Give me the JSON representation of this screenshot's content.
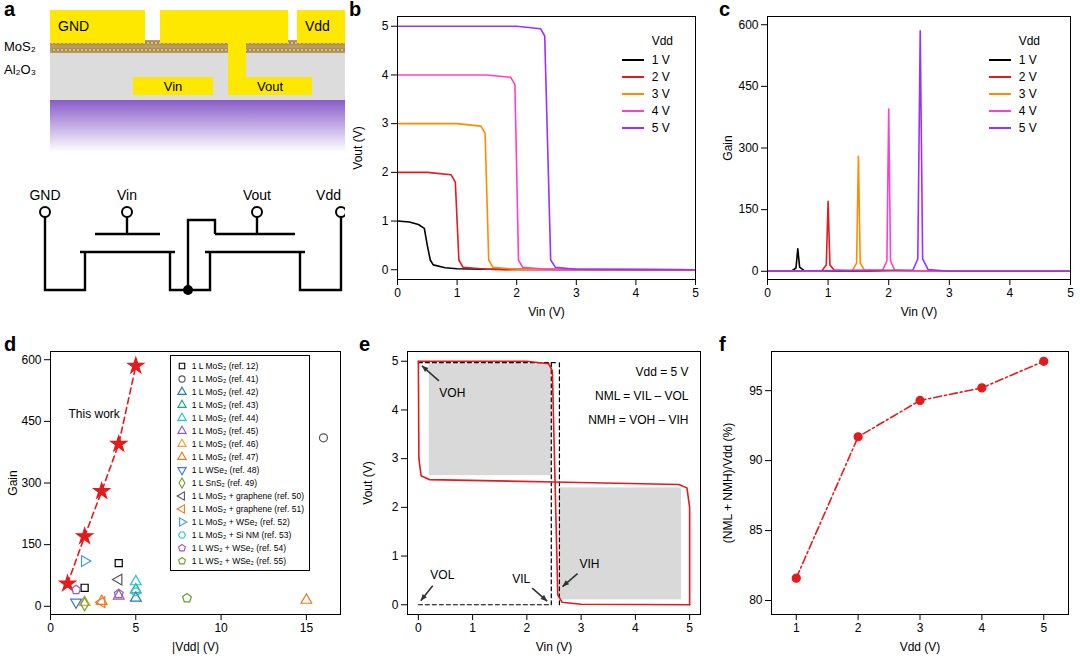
{
  "diagram": {
    "title": "a",
    "cross_section": {
      "contacts": [
        "GND",
        "Vdd"
      ],
      "layers": [
        "MoS₂",
        "Al₂O₃"
      ],
      "gates": [
        "Vin",
        "Vout"
      ]
    },
    "circuit": {
      "terminals": [
        "GND",
        "Vin",
        "Vout",
        "Vdd"
      ]
    }
  },
  "chart_data": [
    {
      "type": "line",
      "title": "b",
      "x_label": "Vin (V)",
      "y_label": "Vout (V)",
      "xlim": [
        0,
        5
      ],
      "xticks": [
        0,
        1,
        2,
        3,
        4,
        5
      ],
      "ylim": [
        -0.2,
        5.2
      ],
      "yticks": [
        0,
        1,
        2,
        3,
        4,
        5
      ],
      "legend": "top-right",
      "legend_title": "Vdd",
      "series": [
        {
          "name": "1 V",
          "color": "#000000",
          "x": [
            0,
            0.2,
            0.35,
            0.45,
            0.5,
            0.55,
            0.6,
            0.8,
            1.0,
            1.5,
            5
          ],
          "values": [
            1.0,
            0.98,
            0.93,
            0.85,
            0.5,
            0.2,
            0.1,
            0.04,
            0.02,
            0.01,
            0
          ]
        },
        {
          "name": "2 V",
          "color": "#e41a1c",
          "x": [
            0,
            0.5,
            0.9,
            0.97,
            1.0,
            1.03,
            1.1,
            1.5,
            2,
            5
          ],
          "values": [
            2,
            2,
            1.95,
            1.8,
            1.0,
            0.2,
            0.05,
            0.01,
            0,
            0
          ]
        },
        {
          "name": "3 V",
          "color": "#ff8c00",
          "x": [
            0,
            1,
            1.4,
            1.47,
            1.5,
            1.53,
            1.6,
            2,
            5
          ],
          "values": [
            3,
            3,
            2.95,
            2.8,
            1.5,
            0.2,
            0.05,
            0.01,
            0
          ]
        },
        {
          "name": "4 V",
          "color": "#ff3fd0",
          "x": [
            0,
            1.5,
            1.9,
            1.97,
            2.0,
            2.03,
            2.1,
            2.5,
            5
          ],
          "values": [
            4,
            4,
            3.95,
            3.8,
            2,
            0.2,
            0.05,
            0.01,
            0
          ]
        },
        {
          "name": "5 V",
          "color": "#9b30ff",
          "x": [
            0,
            2,
            2.4,
            2.47,
            2.52,
            2.57,
            2.65,
            3,
            5
          ],
          "values": [
            5,
            5,
            4.95,
            4.8,
            2.5,
            0.2,
            0.05,
            0.01,
            0
          ]
        }
      ]
    },
    {
      "type": "line",
      "title": "c",
      "x_label": "Vin (V)",
      "y_label": "Gain",
      "xlim": [
        0,
        5
      ],
      "xticks": [
        0,
        1,
        2,
        3,
        4,
        5
      ],
      "ylim": [
        -20,
        620
      ],
      "yticks": [
        0,
        150,
        300,
        450,
        600
      ],
      "legend": "top-right",
      "legend_title": "Vdd",
      "series": [
        {
          "name": "1 V",
          "color": "#000000",
          "x": [
            0,
            0.4,
            0.47,
            0.5,
            0.53,
            0.6,
            1,
            5
          ],
          "values": [
            0,
            1,
            8,
            55,
            10,
            2,
            0,
            0
          ]
        },
        {
          "name": "2 V",
          "color": "#e41a1c",
          "x": [
            0,
            0.9,
            0.97,
            1.0,
            1.03,
            1.1,
            1.5,
            5
          ],
          "values": [
            0,
            2,
            15,
            170,
            15,
            3,
            0,
            0
          ]
        },
        {
          "name": "3 V",
          "color": "#ff8c00",
          "x": [
            0,
            1.4,
            1.47,
            1.5,
            1.53,
            1.6,
            2,
            5
          ],
          "values": [
            0,
            2,
            20,
            280,
            20,
            3,
            0,
            0
          ]
        },
        {
          "name": "4 V",
          "color": "#ff3fd0",
          "x": [
            0,
            1.9,
            1.97,
            2,
            2.03,
            2.1,
            2.5,
            5
          ],
          "values": [
            0,
            3,
            25,
            395,
            25,
            3,
            0,
            0
          ]
        },
        {
          "name": "5 V",
          "color": "#9b30ff",
          "x": [
            0,
            2.4,
            2.48,
            2.52,
            2.56,
            2.65,
            3,
            5
          ],
          "values": [
            0,
            3,
            30,
            585,
            30,
            4,
            0,
            0
          ]
        }
      ]
    },
    {
      "type": "scatter",
      "title": "d",
      "x_label": "|Vdd| (V)",
      "y_label": "Gain",
      "xlim": [
        0,
        17
      ],
      "xticks": [
        0,
        5,
        10,
        15
      ],
      "ylim": [
        -20,
        620
      ],
      "yticks": [
        0,
        150,
        300,
        450,
        600
      ],
      "legend": "top-right",
      "series": [
        {
          "name": "This work",
          "type": "line",
          "color": "#e41a1c",
          "marker": "star",
          "line_style": "dashed",
          "x": [
            1,
            2,
            3,
            4,
            5
          ],
          "values": [
            55,
            170,
            280,
            395,
            585
          ]
        },
        {
          "name": "1 L MoS₂ (ref. 12)",
          "color": "#000000",
          "marker": "square",
          "x": [
            2,
            4
          ],
          "values": [
            45,
            105
          ]
        },
        {
          "name": "1 L MoS₂ (ref. 41)",
          "color": "#555555",
          "marker": "circle",
          "x": [
            16
          ],
          "values": [
            410
          ]
        },
        {
          "name": "1 L MoS₂ (ref. 42)",
          "color": "#1f77b4",
          "marker": "triangle-up",
          "x": [
            5
          ],
          "values": [
            20
          ]
        },
        {
          "name": "1 L MoS₂ (ref. 43)",
          "color": "#17a589",
          "marker": "triangle-up",
          "x": [
            5
          ],
          "values": [
            40
          ]
        },
        {
          "name": "1 L MoS₂ (ref. 44)",
          "color": "#22c4d8",
          "marker": "triangle-up",
          "x": [
            5
          ],
          "values": [
            60
          ]
        },
        {
          "name": "1 L MoS₂ (ref. 45)",
          "color": "#9b59b6",
          "marker": "triangle-up",
          "x": [
            4
          ],
          "values": [
            25
          ]
        },
        {
          "name": "1 L MoS₂ (ref. 46)",
          "color": "#e8a33d",
          "marker": "triangle-up",
          "x": [
            2
          ],
          "values": [
            10
          ]
        },
        {
          "name": "1 L MoS₂ (ref. 47)",
          "color": "#f07820",
          "marker": "triangle-up",
          "x": [
            3,
            15
          ],
          "values": [
            12,
            15
          ]
        },
        {
          "name": "1 L WSe₂ (ref. 48)",
          "color": "#3a7bd5",
          "marker": "triangle-down",
          "x": [
            1.5
          ],
          "values": [
            10
          ]
        },
        {
          "name": "1 L SnS₂ (ref. 49)",
          "color": "#6aa121",
          "marker": "diamond",
          "x": [
            2
          ],
          "values": [
            5
          ]
        },
        {
          "name": "1 L MoS₂ + graphene (ref. 50)",
          "color": "#555555",
          "marker": "triangle-left",
          "x": [
            4
          ],
          "values": [
            65
          ]
        },
        {
          "name": "1 L MoS₂ + graphene (ref. 51)",
          "color": "#f07820",
          "marker": "triangle-left",
          "x": [
            3
          ],
          "values": [
            10
          ]
        },
        {
          "name": "1 L MoS₂ + WSe₂ (ref. 52)",
          "color": "#3a9ad9",
          "marker": "triangle-right",
          "x": [
            2
          ],
          "values": [
            110
          ]
        },
        {
          "name": "1 L MoS₂ + Si NM (ref. 53)",
          "color": "#22c4d8",
          "marker": "hexagon",
          "x": [
            5
          ],
          "values": [
            35
          ]
        },
        {
          "name": "1 L WS₂ + WSe₂ (ref. 54)",
          "color": "#9b59b6",
          "marker": "pentagon",
          "x": [
            1.5,
            4
          ],
          "values": [
            40,
            30
          ]
        },
        {
          "name": "1 L WS₂ + WSe₂ (ref. 55)",
          "color": "#6aa121",
          "marker": "pentagon",
          "x": [
            8
          ],
          "values": [
            20
          ]
        }
      ]
    },
    {
      "type": "line",
      "title": "e",
      "x_label": "Vin (V)",
      "y_label": "Vout (V)",
      "xlim": [
        -0.2,
        5.2
      ],
      "xticks": [
        0,
        1,
        2,
        3,
        4,
        5
      ],
      "ylim": [
        -0.2,
        5.2
      ],
      "yticks": [
        0,
        1,
        2,
        3,
        4,
        5
      ],
      "annotations": [
        "Vdd = 5 V",
        "NML = VIL – VOL",
        "NMH = VOH – VIH"
      ],
      "points": [
        {
          "label": "VOH",
          "x": 0,
          "y": 4.97
        },
        {
          "label": "VOL",
          "x": 0,
          "y": 0
        },
        {
          "label": "VIL",
          "x": 2.45,
          "y": 0
        },
        {
          "label": "VIH",
          "x": 2.6,
          "y": 0.3
        }
      ],
      "squares": [
        {
          "x": [
            0.2,
            2.45
          ],
          "y": [
            2.65,
            4.95
          ]
        },
        {
          "x": [
            2.6,
            4.85
          ],
          "y": [
            0.1,
            2.4
          ]
        }
      ],
      "dashed_lines": [
        {
          "x": [
            0,
            2.55
          ],
          "y": [
            4.97,
            4.97
          ]
        },
        {
          "x": [
            0,
            2.45
          ],
          "y": [
            0,
            0
          ]
        },
        {
          "x": [
            2.45,
            2.45
          ],
          "y": [
            0,
            5
          ]
        },
        {
          "x": [
            2.6,
            2.6
          ],
          "y": [
            0,
            5
          ]
        }
      ],
      "series": [
        {
          "color": "#e41a1c",
          "x": [
            0,
            2,
            2.4,
            2.47,
            2.52,
            2.57,
            2.65,
            3,
            5
          ],
          "values": [
            5,
            5,
            4.95,
            4.8,
            2.5,
            0.2,
            0.05,
            0.01,
            0
          ]
        },
        {
          "color": "#e41a1c",
          "x": [
            5,
            5,
            4.95,
            4.8,
            2.5,
            0.2,
            0.05,
            0.01,
            0
          ],
          "values": [
            0,
            2,
            2.4,
            2.47,
            2.52,
            2.57,
            2.65,
            3,
            5
          ]
        }
      ]
    },
    {
      "type": "line",
      "title": "f",
      "x_label": "Vdd (V)",
      "y_label": "(NML + NMH)/Vdd (%)",
      "xlim": [
        0.6,
        5.4
      ],
      "xticks": [
        1,
        2,
        3,
        4,
        5
      ],
      "ylim": [
        79,
        97.8
      ],
      "yticks": [
        80,
        85,
        90,
        95
      ],
      "series": [
        {
          "color": "#e41a1c",
          "marker": "circle",
          "line_style": "dashdot",
          "x": [
            1,
            2,
            3,
            4,
            5
          ],
          "values": [
            81.6,
            91.7,
            94.3,
            95.2,
            97.1
          ]
        }
      ]
    }
  ]
}
